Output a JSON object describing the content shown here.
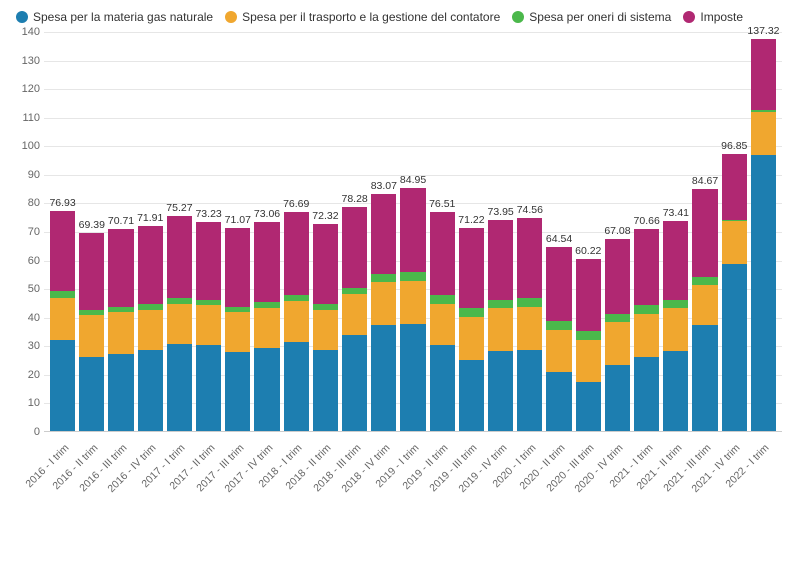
{
  "legend": {
    "items": [
      {
        "label": "Spesa per la materia gas naturale",
        "color": "#1d7eb0"
      },
      {
        "label": "Spesa per il trasporto e la gestione del contatore",
        "color": "#f0a72f"
      },
      {
        "label": "Spesa per oneri di sistema",
        "color": "#4bb84b"
      },
      {
        "label": "Imposte",
        "color": "#b02872"
      }
    ]
  },
  "chart": {
    "type": "stacked-bar",
    "ylim": [
      0,
      140
    ],
    "ytick_step": 10,
    "series_colors": [
      "#1d7eb0",
      "#f0a72f",
      "#4bb84b",
      "#b02872"
    ],
    "background_color": "#ffffff",
    "grid_color": "#e6e6e6",
    "axis_text_color": "#666666",
    "label_fontsize": 11,
    "categories": [
      "2016 - I trim",
      "2016 - II trim",
      "2016 - III trim",
      "2016 - IV trim",
      "2017 - I trim",
      "2017 - II trim",
      "2017 - III trim",
      "2017 - IV trim",
      "2018 - I trim",
      "2018 - II trim",
      "2018 - III trim",
      "2018 - IV trim",
      "2019 - I trim",
      "2019 - II trim",
      "2019 - III trim",
      "2019 - IV trim",
      "2020 - I trim",
      "2020 - II trim",
      "2020 - III trim",
      "2020 - IV trim",
      "2021 - I trim",
      "2021 - II trim",
      "2021 - III trim",
      "2021 - IV trim",
      "2022 - I trim"
    ],
    "stacks": [
      [
        32,
        14.5,
        2.5,
        27.93
      ],
      [
        26,
        14.5,
        2.0,
        26.89
      ],
      [
        27,
        14.5,
        2.0,
        27.21
      ],
      [
        28.5,
        14.0,
        2.0,
        27.41
      ],
      [
        30.5,
        14.0,
        2.0,
        28.77
      ],
      [
        30,
        14.0,
        2.0,
        27.23
      ],
      [
        27.5,
        14.0,
        2.0,
        27.57
      ],
      [
        29,
        14.0,
        2.0,
        28.06
      ],
      [
        31,
        14.5,
        2.0,
        29.19
      ],
      [
        28.5,
        14.0,
        2.0,
        27.82
      ],
      [
        33.5,
        14.5,
        2.0,
        28.28
      ],
      [
        37,
        15.0,
        3.0,
        28.07
      ],
      [
        37.5,
        15.0,
        3.0,
        29.45
      ],
      [
        30,
        14.5,
        3.0,
        29.01
      ],
      [
        25,
        15.0,
        3.0,
        28.22
      ],
      [
        28,
        15.0,
        3.0,
        27.95
      ],
      [
        28.5,
        15.0,
        3.0,
        28.06
      ],
      [
        20.5,
        15.0,
        3.0,
        26.04
      ],
      [
        17,
        15.0,
        3.0,
        25.22
      ],
      [
        23,
        15.0,
        3.0,
        26.08
      ],
      [
        26,
        15.0,
        3.0,
        26.66
      ],
      [
        28,
        15.0,
        3.0,
        27.41
      ],
      [
        37,
        14.0,
        3.0,
        30.67
      ],
      [
        58.5,
        15.0,
        0.5,
        22.85
      ],
      [
        96.5,
        15.0,
        1.0,
        24.82
      ]
    ],
    "totals": [
      "76.93",
      "69.39",
      "70.71",
      "71.91",
      "75.27",
      "73.23",
      "71.07",
      "73.06",
      "76.69",
      "72.32",
      "78.28",
      "83.07",
      "84.95",
      "76.51",
      "71.22",
      "73.95",
      "74.56",
      "64.54",
      "60.22",
      "67.08",
      "70.66",
      "73.41",
      "84.67",
      "96.85",
      "137.32"
    ]
  }
}
